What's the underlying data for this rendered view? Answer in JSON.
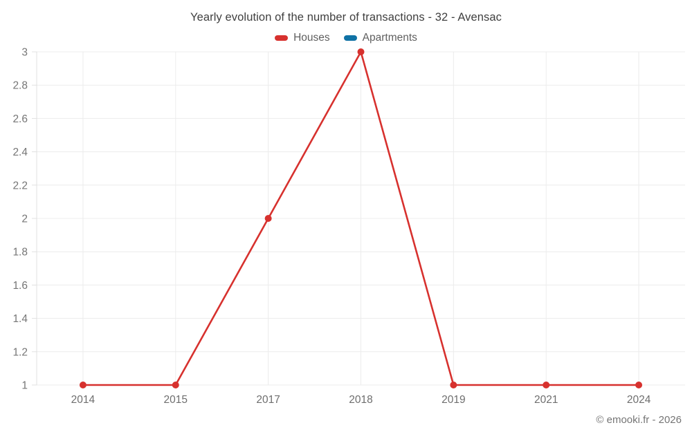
{
  "chart_data": {
    "type": "line",
    "title": "Yearly evolution of the number of transactions - 32 - Avensac",
    "categories": [
      "2014",
      "2015",
      "2017",
      "2018",
      "2019",
      "2021",
      "2024"
    ],
    "series": [
      {
        "name": "Houses",
        "color": "#d7312e",
        "values": [
          1,
          1,
          2,
          3,
          1,
          1,
          1
        ]
      },
      {
        "name": "Apartments",
        "color": "#0f72a5",
        "values": [
          null,
          null,
          null,
          null,
          null,
          null,
          null
        ]
      }
    ],
    "xlabel": "",
    "ylabel": "",
    "ylim": [
      1,
      3
    ],
    "ytick_step": 0.2,
    "ytick_labels": [
      "1",
      "1.2",
      "1.4",
      "1.6",
      "1.8",
      "2",
      "2.2",
      "2.4",
      "2.6",
      "2.8",
      "3"
    ],
    "grid": "on",
    "legend_position": "top"
  },
  "style": {
    "grid_color": "#ececec",
    "axis_color": "#e0e0e0",
    "marker_radius": 5,
    "line_width": 2.6
  },
  "footer": {
    "copyright": "© emooki.fr - 2026"
  }
}
